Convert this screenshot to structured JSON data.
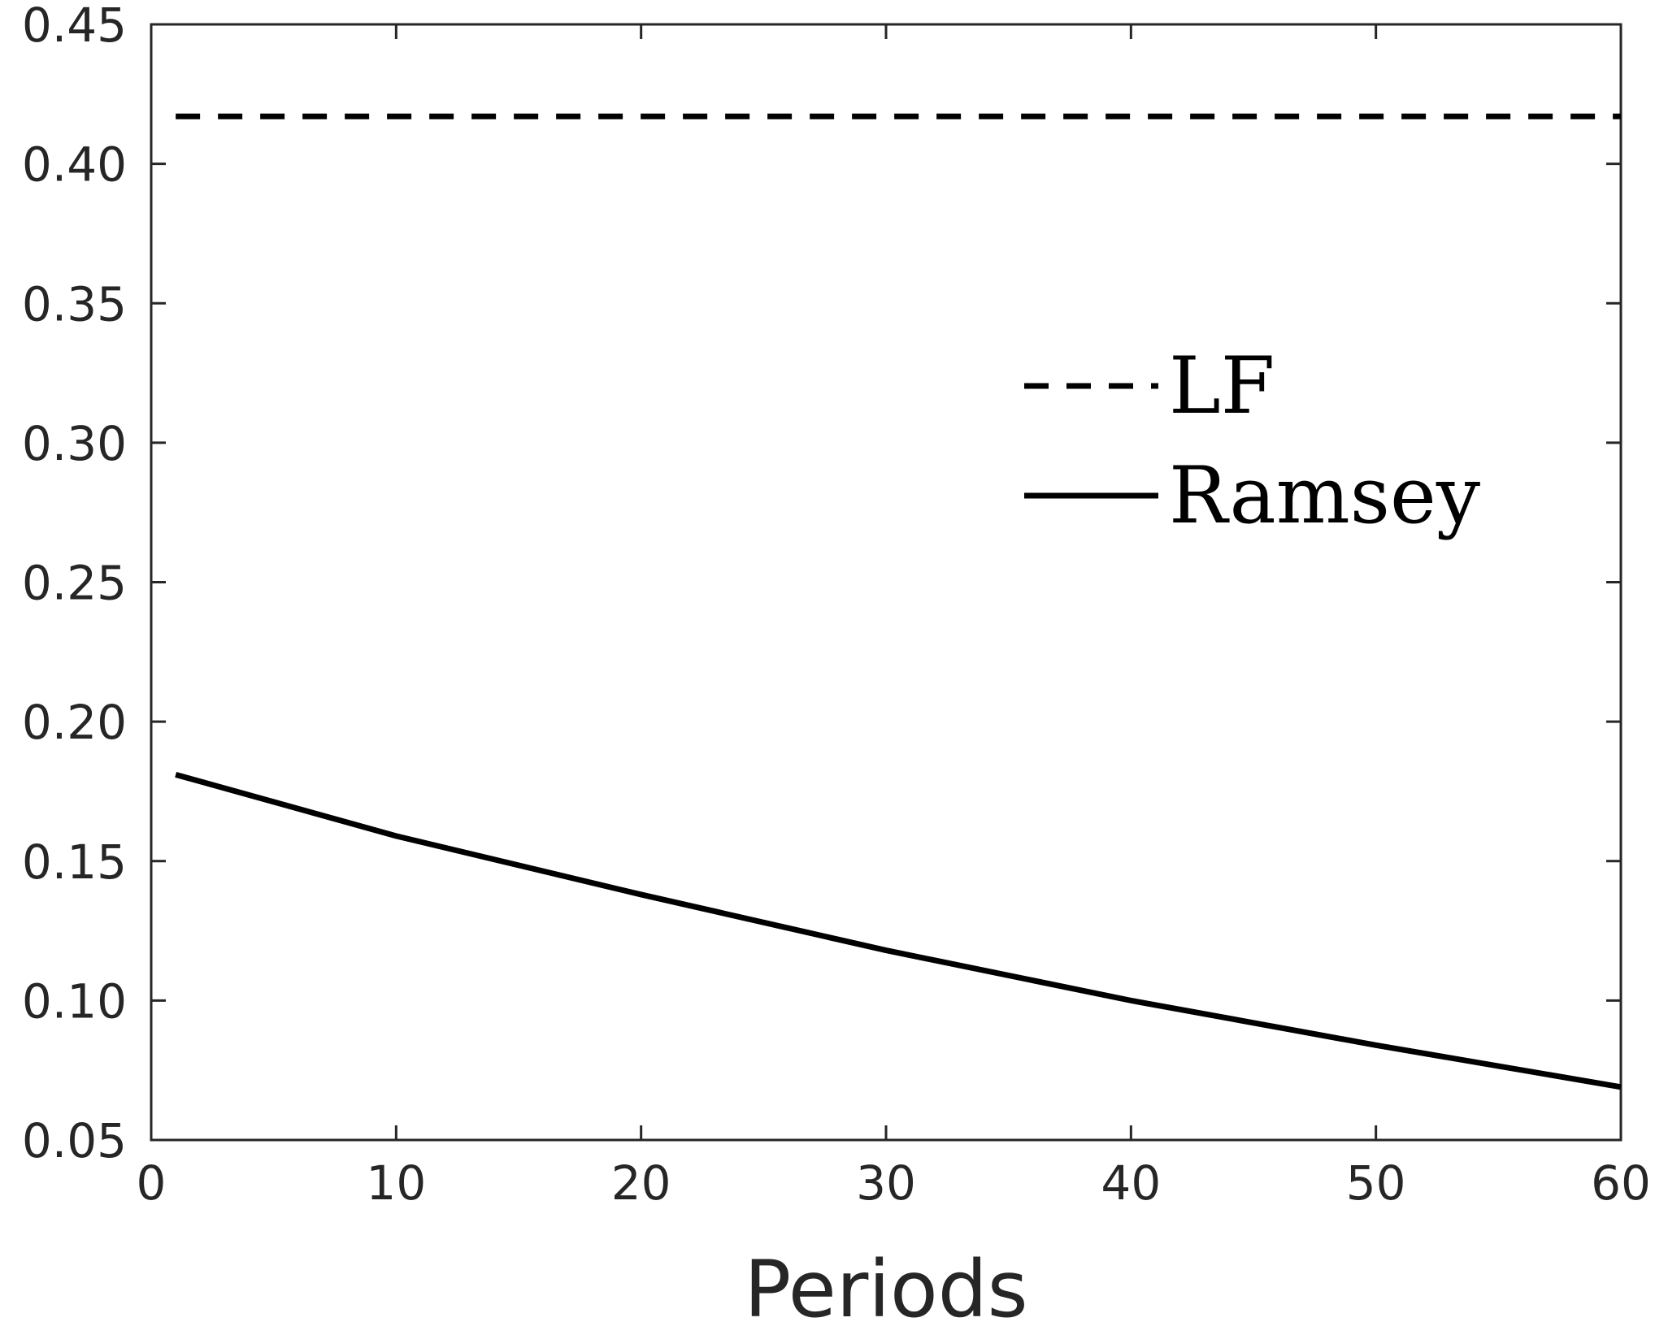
{
  "chart_data": {
    "type": "line",
    "title": "",
    "xlabel": "Periods",
    "ylabel": "",
    "xlim": [
      0,
      60
    ],
    "ylim": [
      0.05,
      0.45
    ],
    "xticks": [
      "0",
      "10",
      "20",
      "30",
      "40",
      "50",
      "60"
    ],
    "yticks": [
      "0.05",
      "0.10",
      "0.15",
      "0.20",
      "0.25",
      "0.30",
      "0.35",
      "0.40",
      "0.45"
    ],
    "grid": false,
    "legend_position": "upper-right",
    "series": [
      {
        "name": "LF",
        "style": "dashed",
        "color": "#000000",
        "x": [
          1,
          60
        ],
        "y": [
          0.417,
          0.417
        ]
      },
      {
        "name": "Ramsey",
        "style": "solid",
        "color": "#000000",
        "x": [
          1,
          10,
          20,
          30,
          40,
          50,
          60
        ],
        "y": [
          0.181,
          0.159,
          0.138,
          0.118,
          0.1,
          0.084,
          0.069
        ]
      }
    ]
  }
}
